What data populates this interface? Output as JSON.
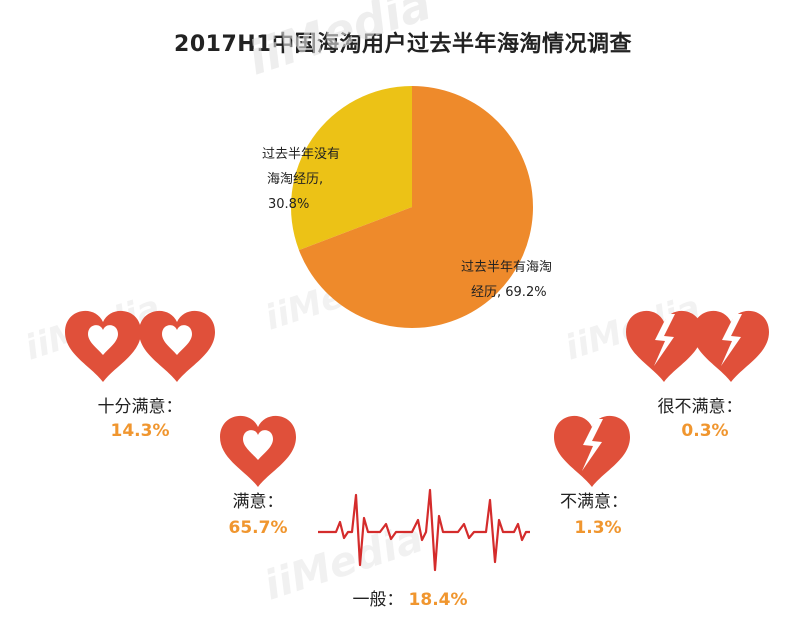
{
  "colors": {
    "slice_no": "#ecc216",
    "slice_yes": "#ee8a2b",
    "heart": "#e0503a",
    "ecg": "#d42c2c",
    "value": "#f0962f"
  },
  "chart_data": [
    {
      "type": "pie",
      "title": "2017H1中国海淘用户过去半年海淘情况调查",
      "slices": [
        {
          "label_lines": [
            "过去半年没有",
            "海淘经历,",
            "30.8%"
          ],
          "value": 30.8,
          "color": "#ecc216"
        },
        {
          "label_lines": [
            "过去半年有海淘",
            "经历, 69.2%"
          ],
          "value": 69.2,
          "color": "#ee8a2b"
        }
      ]
    },
    {
      "type": "pictorial",
      "categories": [
        {
          "name": "十分满意：",
          "value_text": "14.3%",
          "value": 14.3,
          "icon": "two-full-hearts-icon"
        },
        {
          "name": "满意：",
          "value_text": "65.7%",
          "value": 65.7,
          "icon": "full-heart-icon"
        },
        {
          "name": "一般：",
          "value_text": "18.4%",
          "value": 18.4,
          "icon": "heartbeat-line-icon"
        },
        {
          "name": "不满意：",
          "value_text": "1.3%",
          "value": 1.3,
          "icon": "broken-heart-icon"
        },
        {
          "name": "很不满意：",
          "value_text": "0.3%",
          "value": 0.3,
          "icon": "two-broken-hearts-icon"
        }
      ]
    }
  ]
}
